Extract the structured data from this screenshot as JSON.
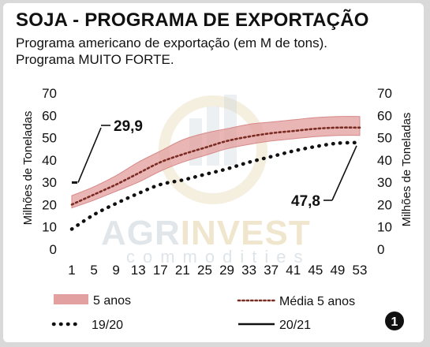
{
  "header": {
    "title": "SOJA - PROGRAMA DE EXPORTAÇÃO",
    "subtitle_line1": "Programa americano de exportação (em M de tons).",
    "subtitle_line2": "Programa MUITO FORTE."
  },
  "watermark": {
    "brand_a": "AGR",
    "brand_b": "INVEST",
    "tagline": "commodities"
  },
  "badge": "1",
  "colors": {
    "band": "#e3a0a0",
    "band_stroke": "#d88a8a",
    "avg": "#7a2b22",
    "prev": "#111111",
    "current": "#111111"
  },
  "chart_data": {
    "type": "line",
    "x_ticks": [
      1,
      5,
      9,
      13,
      17,
      21,
      25,
      29,
      33,
      37,
      41,
      45,
      49,
      53
    ],
    "y_ticks": [
      0,
      10,
      20,
      30,
      40,
      50,
      60,
      70
    ],
    "xlim": [
      1,
      53
    ],
    "ylim": [
      0,
      70
    ],
    "ylabel_left": "Milhões de Toneladas",
    "ylabel_right": "Milhões de Toneladas",
    "legend": {
      "band": "5 anos",
      "avg": "Média 5 anos",
      "prev": "19/20",
      "current": "20/21"
    },
    "series": [
      {
        "name": "5 anos",
        "kind": "band",
        "x": [
          1,
          5,
          9,
          13,
          17,
          21,
          25,
          29,
          33,
          37,
          41,
          45,
          49,
          53
        ],
        "low": [
          18.5,
          22,
          26,
          30,
          35,
          39,
          42,
          45,
          47,
          48.5,
          49.5,
          50.5,
          51,
          51
        ],
        "high": [
          24,
          28,
          33,
          39,
          44,
          49,
          52,
          54,
          56,
          57,
          58,
          59,
          59.5,
          59.5
        ]
      },
      {
        "name": "Média 5 anos",
        "kind": "dotted-fine",
        "x": [
          1,
          5,
          9,
          13,
          17,
          21,
          25,
          29,
          33,
          37,
          41,
          45,
          49,
          53
        ],
        "values": [
          20,
          24.5,
          29,
          34,
          39,
          42.5,
          45.5,
          48.5,
          50.5,
          52,
          53,
          54,
          54.5,
          54.5
        ]
      },
      {
        "name": "19/20",
        "kind": "dotted-bold",
        "x": [
          1,
          5,
          9,
          13,
          17,
          21,
          25,
          29,
          33,
          37,
          41,
          45,
          49,
          53
        ],
        "values": [
          9,
          15.5,
          20.5,
          25,
          29,
          31,
          33.5,
          36,
          39,
          41.5,
          44,
          46,
          47.5,
          47.8
        ]
      },
      {
        "name": "20/21",
        "kind": "solid",
        "x": [
          1,
          2
        ],
        "values": [
          29.9,
          29.9
        ]
      }
    ],
    "annotations": [
      {
        "text": "29,9",
        "x": 1,
        "y": 29.9
      },
      {
        "text": "47,8",
        "x": 53,
        "y": 47.8
      }
    ]
  }
}
